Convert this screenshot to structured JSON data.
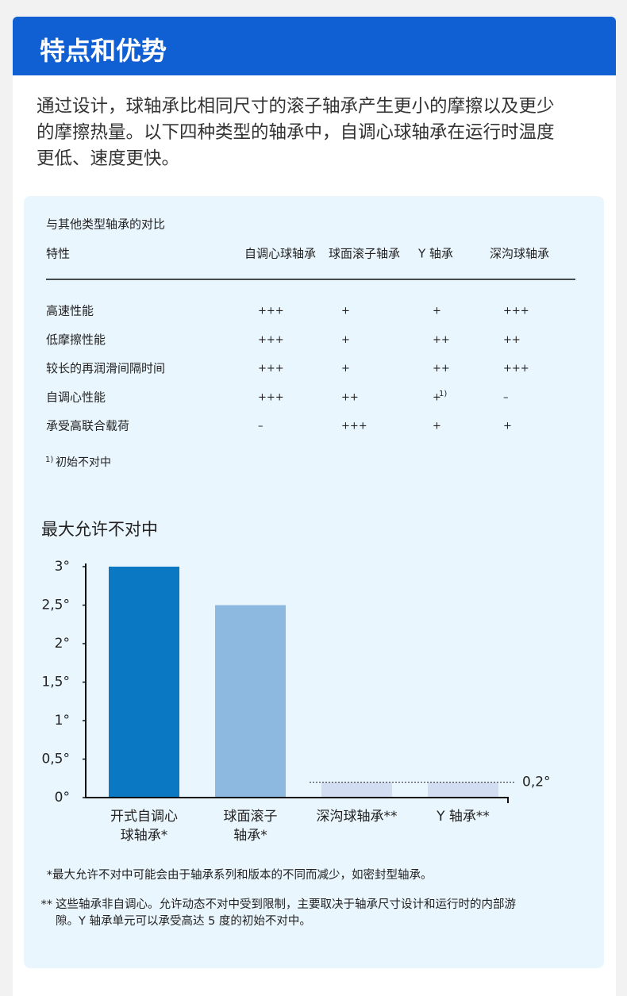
{
  "header": {
    "title": "特点和优势"
  },
  "intro": "通过设计，球轴承比相同尺寸的滚子轴承产生更小的摩擦以及更少的摩擦热量。以下四种类型的轴承中，自调心球轴承在运行时温度更低、速度更快。",
  "table": {
    "caption": "与其他类型轴承的对比",
    "columns": [
      "特性",
      "自调心球轴承",
      "球面滚子轴承",
      "Y 轴承",
      "深沟球轴承"
    ],
    "rows": [
      [
        "高速性能",
        "+++",
        "+",
        "+",
        "+++"
      ],
      [
        "低摩擦性能",
        "+++",
        "+",
        "++",
        "++"
      ],
      [
        "较长的再润滑间隔时间",
        "+++",
        "+",
        "++",
        "+++"
      ],
      [
        "自调心性能",
        "+++",
        "++",
        {
          "text": "+",
          "note": "1)"
        },
        "–"
      ],
      [
        "承受高联合载荷",
        "–",
        "+++",
        "+",
        "+"
      ]
    ],
    "footnote": {
      "mark": "1)",
      "text": "初始不对中"
    }
  },
  "chart_data": {
    "type": "bar",
    "title": "最大允许不对中",
    "categories": [
      "开式自调心\n球轴承*",
      "球面滚子\n轴承*",
      "深沟球轴承**",
      "Y 轴承**"
    ],
    "values": [
      3,
      2.5,
      0.2,
      0.2
    ],
    "colors": [
      "#0a78c2",
      "#8db8e0",
      "#d3ddf1",
      "#d3ddf1"
    ],
    "ylim": [
      0,
      3
    ],
    "yticks": [
      {
        "value": 0,
        "label": "0°"
      },
      {
        "value": 0.5,
        "label": "0,5°"
      },
      {
        "value": 1,
        "label": "1°"
      },
      {
        "value": 1.5,
        "label": "1,5°"
      },
      {
        "value": 2,
        "label": "2°"
      },
      {
        "value": 2.5,
        "label": "2,5°"
      },
      {
        "value": 3,
        "label": "3°"
      }
    ],
    "annotation": {
      "value": 0.2,
      "label": "0,2°"
    }
  },
  "notes": [
    {
      "mark": "*",
      "text": "最大允许不对中可能会由于轴承系列和版本的不同而减少，如密封型轴承。"
    },
    {
      "mark": "**",
      "text": "这些轴承非自调心。允许动态不对中受到限制，主要取决于轴承尺寸设计和运行时的内部游隙。Y 轴承单元可以承受高达 5 度的初始不对中。"
    }
  ]
}
